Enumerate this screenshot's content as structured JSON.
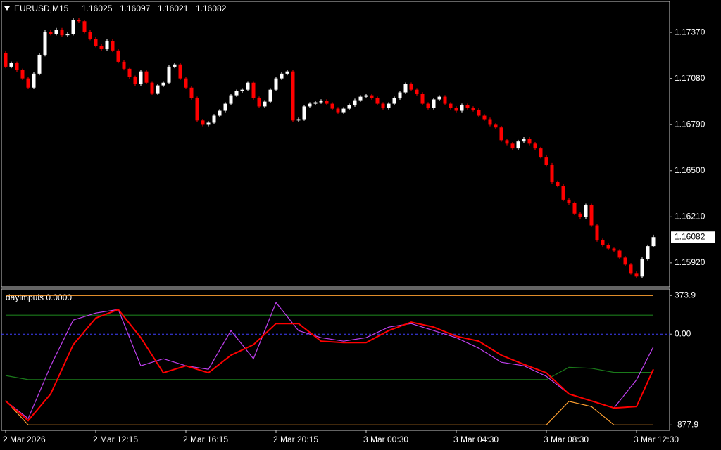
{
  "chart_data": [
    {
      "type": "candlestick",
      "title": "EURUSD,M15",
      "up_color": "#ffffff",
      "down_color": "#ff0000",
      "open": [
        1.17242,
        1.17154,
        1.17176,
        1.17132,
        1.1708,
        1.17022,
        1.1711,
        1.17229,
        1.17374,
        1.17361,
        1.17388,
        1.17352,
        1.17361,
        1.17449,
        1.1744,
        1.17374,
        1.1733,
        1.17286,
        1.17264,
        1.17317,
        1.17256,
        1.17185,
        1.17141,
        1.17088,
        1.17044,
        1.17124,
        1.17053,
        1.16987,
        1.17036,
        1.17053,
        1.17154,
        1.17168,
        1.1708,
        1.17022,
        1.16956,
        1.16816,
        1.16789,
        1.16802,
        1.16846,
        1.16877,
        1.16921,
        1.16974,
        1.17,
        1.17009,
        1.17053,
        1.16956,
        1.16904,
        1.16934,
        1.17009,
        1.1708,
        1.1711,
        1.17124,
        1.16816,
        1.16824,
        1.16904,
        1.16921,
        1.1693,
        1.16939,
        1.16921,
        1.1689,
        1.16868,
        1.1689,
        1.16912,
        1.16943,
        1.16965,
        1.16974,
        1.16956,
        1.16921,
        1.16895,
        1.16921,
        1.16956,
        1.16992,
        1.17044,
        1.17009,
        1.16983,
        1.16921,
        1.16895,
        1.16948,
        1.16965,
        1.16921,
        1.16895,
        1.16877,
        1.16912,
        1.16895,
        1.16882,
        1.16846,
        1.16824,
        1.16789,
        1.16772,
        1.16692,
        1.1667,
        1.1664,
        1.16684,
        1.16701,
        1.1667,
        1.1664,
        1.16587,
        1.16538,
        1.16428,
        1.16406,
        1.16318,
        1.16296,
        1.1623,
        1.16208,
        1.16283,
        1.16156,
        1.16063,
        1.16032,
        1.1601,
        1.15997,
        1.15953,
        1.15909,
        1.15856,
        1.15834,
        1.15944,
        1.16025
      ],
      "high": [
        1.17252,
        1.17186,
        1.17186,
        1.17142,
        1.1709,
        1.1712,
        1.17239,
        1.17384,
        1.17384,
        1.17398,
        1.17398,
        1.17371,
        1.17459,
        1.17459,
        1.1745,
        1.17384,
        1.1734,
        1.17296,
        1.17327,
        1.17327,
        1.17266,
        1.17195,
        1.17151,
        1.17098,
        1.17134,
        1.17134,
        1.17063,
        1.17046,
        1.17063,
        1.17164,
        1.17178,
        1.17178,
        1.1709,
        1.17032,
        1.16966,
        1.16826,
        1.16812,
        1.16856,
        1.16887,
        1.16931,
        1.16984,
        1.1701,
        1.17019,
        1.17063,
        1.17063,
        1.16966,
        1.16944,
        1.17019,
        1.1709,
        1.1712,
        1.17134,
        1.17134,
        1.16834,
        1.16914,
        1.16931,
        1.1694,
        1.16949,
        1.16949,
        1.16931,
        1.169,
        1.169,
        1.16922,
        1.16953,
        1.16975,
        1.16984,
        1.16984,
        1.16966,
        1.16931,
        1.16931,
        1.16966,
        1.17002,
        1.17054,
        1.17054,
        1.17019,
        1.16993,
        1.16931,
        1.16958,
        1.16975,
        1.16975,
        1.16931,
        1.16905,
        1.16922,
        1.16922,
        1.16905,
        1.16892,
        1.16856,
        1.16834,
        1.16799,
        1.16782,
        1.16702,
        1.1668,
        1.16694,
        1.16711,
        1.16711,
        1.1668,
        1.1665,
        1.16597,
        1.16548,
        1.16438,
        1.16416,
        1.16328,
        1.16306,
        1.1624,
        1.16293,
        1.16293,
        1.16166,
        1.16073,
        1.16042,
        1.1602,
        1.16007,
        1.15963,
        1.15919,
        1.15866,
        1.15954,
        1.16035,
        1.16097
      ],
      "low": [
        1.17144,
        1.17144,
        1.17122,
        1.1707,
        1.17012,
        1.17012,
        1.171,
        1.17219,
        1.17351,
        1.17351,
        1.17342,
        1.17342,
        1.17351,
        1.1743,
        1.17364,
        1.1732,
        1.17276,
        1.17254,
        1.17254,
        1.17246,
        1.17175,
        1.17131,
        1.17078,
        1.17034,
        1.17034,
        1.17043,
        1.16977,
        1.16977,
        1.17026,
        1.17043,
        1.17144,
        1.1707,
        1.17012,
        1.16946,
        1.16806,
        1.16779,
        1.16779,
        1.16792,
        1.16836,
        1.16867,
        1.16911,
        1.16964,
        1.1699,
        1.16999,
        1.16946,
        1.16894,
        1.16894,
        1.16924,
        1.16999,
        1.1707,
        1.171,
        1.16806,
        1.16806,
        1.16814,
        1.16894,
        1.16911,
        1.1692,
        1.16911,
        1.1688,
        1.16858,
        1.16858,
        1.1688,
        1.16902,
        1.16933,
        1.16955,
        1.16946,
        1.16911,
        1.16885,
        1.16885,
        1.16911,
        1.16946,
        1.16982,
        1.16999,
        1.16973,
        1.16911,
        1.16885,
        1.16885,
        1.16938,
        1.16911,
        1.16885,
        1.16867,
        1.16867,
        1.16885,
        1.16872,
        1.16836,
        1.16814,
        1.16779,
        1.16762,
        1.16682,
        1.1666,
        1.1663,
        1.1663,
        1.16674,
        1.1666,
        1.1663,
        1.16577,
        1.16528,
        1.16418,
        1.16396,
        1.16308,
        1.16286,
        1.1622,
        1.16198,
        1.16198,
        1.16146,
        1.16053,
        1.16022,
        1.16,
        1.15987,
        1.15943,
        1.15899,
        1.15846,
        1.15824,
        1.15824,
        1.15934,
        1.16021
      ],
      "close": [
        1.17154,
        1.17176,
        1.17132,
        1.1708,
        1.17022,
        1.1711,
        1.17229,
        1.17374,
        1.17361,
        1.17388,
        1.17352,
        1.17361,
        1.17449,
        1.1744,
        1.17374,
        1.1733,
        1.17286,
        1.17264,
        1.17317,
        1.17256,
        1.17185,
        1.17141,
        1.17088,
        1.17044,
        1.17124,
        1.17053,
        1.16987,
        1.17036,
        1.17053,
        1.17154,
        1.17168,
        1.1708,
        1.17022,
        1.16956,
        1.16816,
        1.16789,
        1.16802,
        1.16846,
        1.16877,
        1.16921,
        1.16974,
        1.17,
        1.17009,
        1.17053,
        1.16956,
        1.16904,
        1.16934,
        1.17009,
        1.1708,
        1.1711,
        1.17124,
        1.16816,
        1.16824,
        1.16904,
        1.16921,
        1.1693,
        1.16939,
        1.16921,
        1.1689,
        1.16868,
        1.1689,
        1.16912,
        1.16943,
        1.16965,
        1.16974,
        1.16956,
        1.16921,
        1.16895,
        1.16921,
        1.16956,
        1.16992,
        1.17044,
        1.17009,
        1.16983,
        1.16921,
        1.16895,
        1.16948,
        1.16965,
        1.16921,
        1.16895,
        1.16877,
        1.16912,
        1.16895,
        1.16882,
        1.16846,
        1.16824,
        1.16789,
        1.16772,
        1.16692,
        1.1667,
        1.1664,
        1.16684,
        1.16701,
        1.1667,
        1.1664,
        1.16587,
        1.16538,
        1.16428,
        1.16406,
        1.16318,
        1.16296,
        1.1623,
        1.16208,
        1.16283,
        1.16156,
        1.16063,
        1.16032,
        1.1601,
        1.15997,
        1.15953,
        1.15909,
        1.15856,
        1.15834,
        1.15944,
        1.16025,
        1.16082
      ],
      "xlim": [
        -0.75,
        117.875
      ],
      "xticks": [
        {
          "value": 0,
          "label": "2 Mar 2026"
        },
        {
          "value": 16,
          "label": "2 Mar 12:15"
        },
        {
          "value": 32,
          "label": "2 Mar 16:15"
        },
        {
          "value": 48,
          "label": "2 Mar 20:15"
        },
        {
          "value": 64,
          "label": "3 Mar 00:30"
        },
        {
          "value": 80,
          "label": "3 Mar 04:30"
        },
        {
          "value": 96,
          "label": "3 Mar 08:30"
        },
        {
          "value": 112,
          "label": "3 Mar 12:30"
        }
      ],
      "ylim": [
        1.15769,
        1.17565
      ],
      "yticks": [
        {
          "value": 1.1737,
          "label": "1.17370"
        },
        {
          "value": 1.1708,
          "label": "1.17080"
        },
        {
          "value": 1.1679,
          "label": "1.16790"
        },
        {
          "value": 1.165,
          "label": "1.16500"
        },
        {
          "value": 1.1621,
          "label": "1.16210"
        },
        {
          "value": 1.1592,
          "label": "1.15920"
        }
      ]
    },
    {
      "type": "line",
      "title": "dayimpuls 0.0000",
      "x": [
        0,
        4,
        8,
        12,
        16,
        20,
        24,
        28,
        32,
        36,
        40,
        44,
        48,
        52,
        56,
        60,
        64,
        68,
        72,
        76,
        80,
        84,
        88,
        92,
        96,
        100,
        104,
        108,
        112,
        115
      ],
      "xlim": [
        -0.75,
        117.875
      ],
      "series": [
        {
          "color": "#ffa030",
          "values": [
            -640,
            -877.9,
            -877.9,
            -877.9,
            -877.9,
            -877.9,
            -877.9,
            -877.9,
            -877.9,
            -877.9,
            -877.9,
            -877.9,
            -877.9,
            -877.9,
            -877.9,
            -877.9,
            -877.9,
            -877.9,
            -877.9,
            -877.9,
            -877.9,
            -877.9,
            -877.9,
            -877.9,
            -877.9,
            -650,
            -700,
            -877.9,
            -877.9,
            -877.9
          ]
        },
        {
          "color": "#ffa030",
          "values": [
            373.9,
            373.9,
            373.9,
            373.9,
            373.9,
            373.9,
            373.9,
            373.9,
            373.9,
            373.9,
            373.9,
            373.9,
            373.9,
            373.9,
            373.9,
            373.9,
            373.9,
            373.9,
            373.9,
            373.9,
            373.9,
            373.9,
            373.9,
            373.9,
            373.9,
            373.9,
            373.9,
            373.9,
            373.9,
            373.9
          ]
        },
        {
          "color": "#1a7a1a",
          "values": [
            184,
            184,
            184,
            184,
            184,
            184,
            184,
            184,
            184,
            184,
            184,
            184,
            184,
            184,
            184,
            184,
            184,
            184,
            184,
            184,
            184,
            184,
            184,
            184,
            184,
            184,
            184,
            184,
            184,
            184
          ]
        },
        {
          "color": "#1a7a1a",
          "values": [
            -400,
            -440,
            -440,
            -440,
            -440,
            -440,
            -440,
            -440,
            -440,
            -440,
            -440,
            -440,
            -440,
            -440,
            -440,
            -440,
            -440,
            -440,
            -440,
            -440,
            -440,
            -440,
            -440,
            -440,
            -440,
            -320,
            -330,
            -370,
            -370,
            -370
          ]
        },
        {
          "color": "#c040f0",
          "values": [
            -646,
            -816,
            -306,
            136,
            204,
            238,
            -306,
            -238,
            -306,
            -340,
            34,
            -238,
            306,
            34,
            -34,
            -68,
            -34,
            68,
            102,
            34,
            -34,
            -136,
            -272,
            -306,
            -408,
            -578,
            -646,
            -714,
            -442,
            -122
          ]
        },
        {
          "color": "#ff0000",
          "values": [
            -646,
            -836,
            -578,
            -102,
            156,
            238,
            -34,
            -374,
            -306,
            -374,
            -204,
            -102,
            102,
            102,
            -68,
            -82,
            -82,
            34,
            116,
            68,
            -20,
            -68,
            -204,
            -292,
            -374,
            -578,
            -646,
            -714,
            -700,
            -340
          ]
        }
      ],
      "ylim": [
        -930,
        430
      ],
      "yticks": [
        373.9,
        {
          "value": 0,
          "label": "0.00"
        },
        -877.9
      ],
      "zero_line_color": "#4040ff"
    }
  ]
}
